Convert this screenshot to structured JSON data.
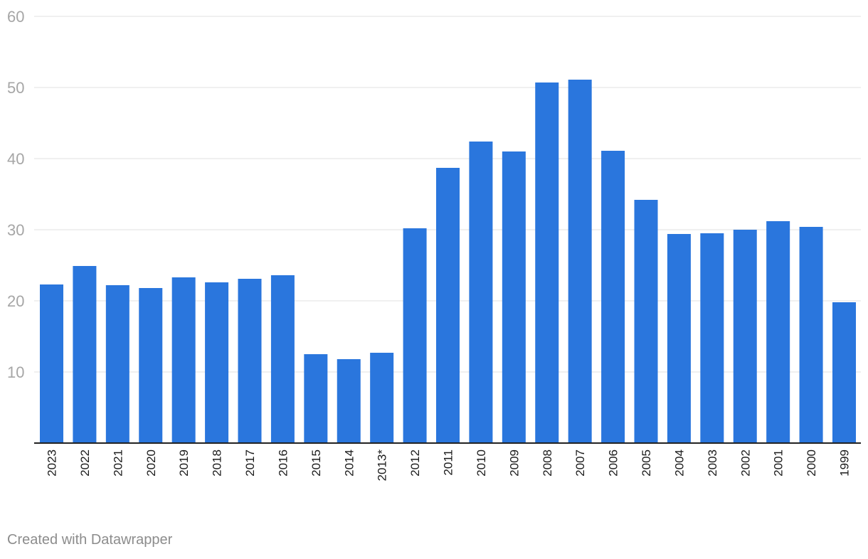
{
  "chart_data": {
    "type": "bar",
    "categories": [
      "2023",
      "2022",
      "2021",
      "2020",
      "2019",
      "2018",
      "2017",
      "2016",
      "2015",
      "2014",
      "2013*",
      "2012",
      "2011",
      "2010",
      "2009",
      "2008",
      "2007",
      "2006",
      "2005",
      "2004",
      "2003",
      "2002",
      "2001",
      "2000",
      "1999"
    ],
    "values": [
      22.3,
      24.9,
      22.2,
      21.8,
      23.3,
      22.6,
      23.1,
      23.6,
      12.5,
      11.8,
      12.7,
      30.2,
      38.7,
      42.4,
      41.0,
      50.7,
      51.1,
      41.1,
      34.2,
      29.4,
      29.5,
      30.0,
      31.2,
      30.4,
      19.8
    ],
    "yticks": [
      10,
      20,
      30,
      40,
      50,
      60
    ],
    "ylim": [
      0,
      60
    ],
    "bar_color": "#2a76dd",
    "grid": true
  },
  "footer": {
    "credit": "Created with Datawrapper"
  }
}
